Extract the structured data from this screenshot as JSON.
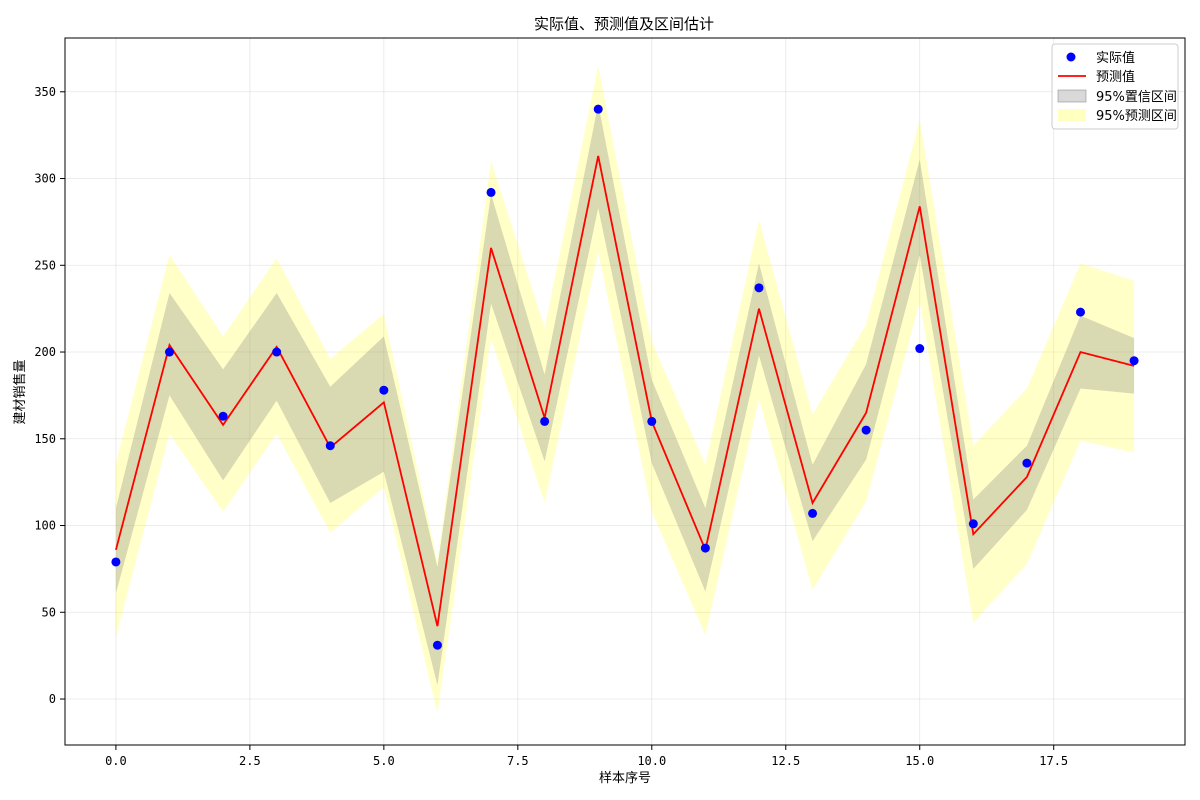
{
  "chart_data": {
    "type": "line",
    "title": "实际值、预测值及区间估计",
    "xlabel": "样本序号",
    "ylabel": "建材销售量",
    "xlim": [
      -0.95,
      19.95
    ],
    "ylim": [
      -26.5,
      381
    ],
    "x_ticks": [
      0.0,
      2.5,
      5.0,
      7.5,
      10.0,
      12.5,
      15.0,
      17.5
    ],
    "x_tick_labels": [
      "0.0",
      "2.5",
      "5.0",
      "7.5",
      "10.0",
      "12.5",
      "15.0",
      "17.5"
    ],
    "y_ticks": [
      0,
      50,
      100,
      150,
      200,
      250,
      300,
      350
    ],
    "y_tick_labels": [
      "0",
      "50",
      "100",
      "150",
      "200",
      "250",
      "300",
      "350"
    ],
    "grid": true,
    "legend_position": "top-right",
    "x": [
      0,
      1,
      2,
      3,
      4,
      5,
      6,
      7,
      8,
      9,
      10,
      11,
      12,
      13,
      14,
      15,
      16,
      17,
      18,
      19
    ],
    "series": [
      {
        "name": "实际值",
        "kind": "scatter",
        "color": "#0000ff",
        "values": [
          79,
          200,
          163,
          200,
          146,
          178,
          31,
          292,
          160,
          340,
          160,
          87,
          237,
          107,
          155,
          202,
          101,
          136,
          223,
          195
        ]
      },
      {
        "name": "预测值",
        "kind": "line",
        "color": "#ff0000",
        "values": [
          86,
          204,
          158,
          203,
          145,
          171,
          42,
          260,
          162,
          313,
          160,
          86,
          225,
          113,
          165,
          284,
          95,
          128,
          200,
          192
        ]
      },
      {
        "name": "95%置信区间",
        "kind": "band",
        "color": "#808080",
        "lower": [
          61,
          175,
          126,
          172,
          113,
          131,
          8,
          228,
          137,
          283,
          136,
          62,
          198,
          91,
          138,
          256,
          75,
          109,
          179,
          176
        ],
        "upper": [
          110,
          234,
          190,
          234,
          180,
          209,
          76,
          291,
          187,
          343,
          184,
          110,
          251,
          135,
          193,
          311,
          115,
          146,
          221,
          208
        ]
      },
      {
        "name": "95%预测区间",
        "kind": "band",
        "color": "#ffff00",
        "lower": [
          36,
          153,
          108,
          153,
          96,
          122,
          -8,
          208,
          113,
          258,
          108,
          37,
          173,
          63,
          114,
          229,
          44,
          78,
          149,
          142
        ],
        "upper": [
          136,
          256,
          209,
          254,
          196,
          222,
          79,
          310,
          214,
          365,
          206,
          135,
          276,
          164,
          216,
          334,
          146,
          179,
          251,
          241
        ]
      }
    ]
  }
}
